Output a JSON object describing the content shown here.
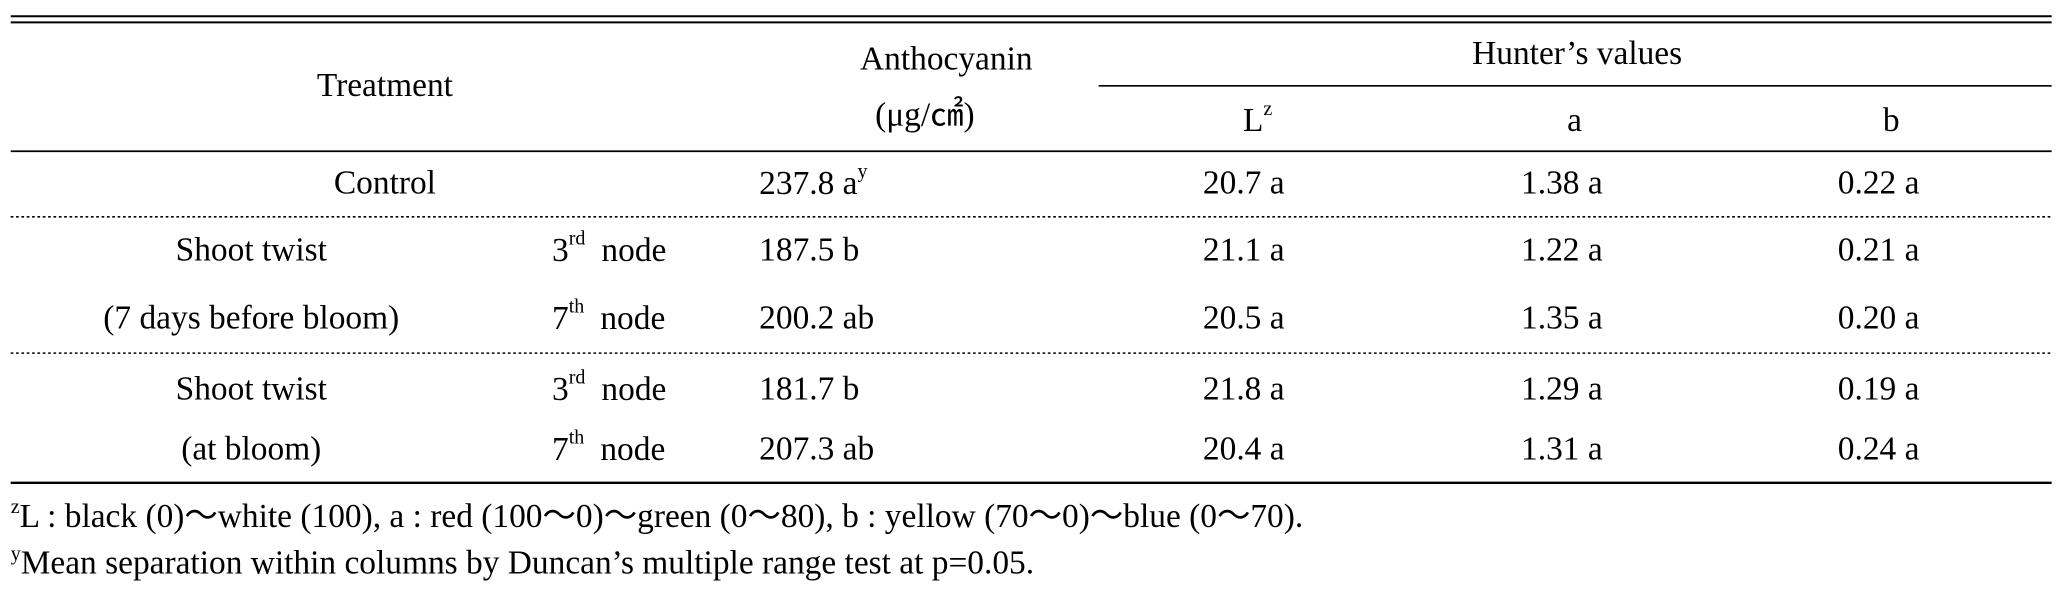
{
  "table": {
    "header": {
      "treatment": "Treatment",
      "anthocyanin": "Anthocyanin",
      "anthocyanin_unit": "(μg/㎠)",
      "hunter": "Hunter’s values",
      "L": "L",
      "L_sup": "z",
      "a": "a",
      "b": "b"
    },
    "control": {
      "treatment": "Control",
      "anthocyanin": "237.8 a",
      "anthocyanin_sup": "y",
      "L": "20.7 a",
      "a": "1.38 a",
      "b": "0.22 a"
    },
    "groups": [
      {
        "label": [
          "Shoot twist",
          "(7 days before bloom)"
        ],
        "rows": [
          {
            "node": "3",
            "node_sup": "rd",
            "node_text": "node",
            "anthocyanin": "187.5 b",
            "L": "21.1 a",
            "a": "1.22 a",
            "b": "0.21 a"
          },
          {
            "node": "7",
            "node_sup": "th",
            "node_text": "node",
            "anthocyanin": "200.2 ab",
            "L": "20.5 a",
            "a": "1.35 a",
            "b": "0.20 a"
          }
        ]
      },
      {
        "label": [
          "Shoot twist",
          "(at bloom)"
        ],
        "rows": [
          {
            "node": "3",
            "node_sup": "rd",
            "node_text": "node",
            "anthocyanin": "181.7 b",
            "L": "21.8 a",
            "a": "1.29 a",
            "b": "0.19 a"
          },
          {
            "node": "7",
            "node_sup": "th",
            "node_text": "node",
            "anthocyanin": "207.3 ab",
            "L": "20.4 a",
            "a": "1.31 a",
            "b": "0.24 a"
          }
        ]
      }
    ]
  },
  "footnotes": [
    {
      "sup": "z",
      "text": "L : black (0)～white (100), a : red (100～0)～green (0～80), b : yellow (70～0)～blue (0～70)."
    },
    {
      "sup": "y",
      "text": "Mean separation within columns by Duncan’s multiple range test at p=0.05."
    }
  ]
}
